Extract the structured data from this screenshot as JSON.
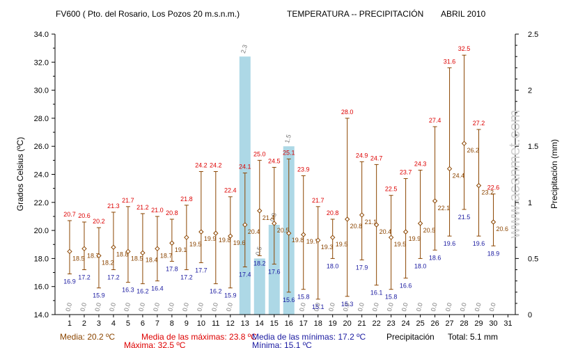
{
  "header": {
    "title": "FV600 ( Pto. del Rosario, Los Pozos 20 m.s.n.m.)",
    "subtitle": "TEMPERATURA -- PRECIPITACIÓN",
    "month": "ABRIL 2010"
  },
  "watermark": "www.acanmet.com",
  "colors": {
    "max": "#dd0000",
    "min": "#1a1aa0",
    "mean": "#8b4500",
    "precip": "#add8e6",
    "axis": "#000000"
  },
  "chart_data": {
    "type": "bar+range",
    "ylabel_left": "Grados Celsius (ºC)",
    "ylabel_right": "Precipitación (mm)",
    "ylim_left": [
      14.0,
      34.0
    ],
    "ylim_right": [
      0,
      2.5
    ],
    "yticks_left": [
      "14.0",
      "16.0",
      "18.0",
      "20.0",
      "22.0",
      "24.0",
      "26.0",
      "28.0",
      "30.0",
      "32.0",
      "34.0"
    ],
    "yticks_right": [
      "0",
      "0.5",
      "1",
      "1.5",
      "2",
      "2.5"
    ],
    "days": [
      1,
      2,
      3,
      4,
      5,
      6,
      7,
      8,
      9,
      10,
      11,
      12,
      13,
      14,
      15,
      16,
      17,
      18,
      19,
      20,
      21,
      22,
      23,
      24,
      25,
      26,
      27,
      28,
      29,
      30,
      31
    ],
    "max": [
      20.7,
      20.6,
      20.2,
      21.3,
      21.7,
      21.2,
      21.0,
      20.8,
      21.8,
      24.2,
      24.2,
      22.4,
      24.1,
      25.0,
      24.5,
      25.1,
      23.9,
      21.7,
      20.8,
      28.0,
      24.9,
      24.7,
      22.5,
      23.7,
      24.3,
      27.4,
      31.6,
      32.5,
      27.2,
      22.6,
      null
    ],
    "mean": [
      18.5,
      18.7,
      18.2,
      18.8,
      18.5,
      18.4,
      18.7,
      19.1,
      19.5,
      19.9,
      19.8,
      19.6,
      20.4,
      21.4,
      20.5,
      19.8,
      19.7,
      19.3,
      19.5,
      20.8,
      21.1,
      20.4,
      19.5,
      19.9,
      20.5,
      22.1,
      24.4,
      26.2,
      23.2,
      20.6,
      null
    ],
    "min": [
      16.9,
      17.2,
      15.9,
      17.2,
      16.3,
      16.2,
      16.4,
      17.8,
      17.2,
      17.7,
      16.2,
      15.9,
      17.4,
      18.2,
      17.6,
      15.6,
      15.8,
      15.1,
      18.0,
      15.3,
      17.9,
      16.1,
      15.8,
      16.6,
      18.0,
      18.6,
      19.6,
      21.5,
      19.6,
      18.9,
      null
    ],
    "precip": [
      0.0,
      0.0,
      0.0,
      0.0,
      0.0,
      0.0,
      0.0,
      0.0,
      0.0,
      0.0,
      0.0,
      0.0,
      2.3,
      0.5,
      0.8,
      1.5,
      0.0,
      0.0,
      0.0,
      0.0,
      0.0,
      0.0,
      0.0,
      0.0,
      0.0,
      0.0,
      0.0,
      0.0,
      0.0,
      0.0,
      null
    ],
    "precip_labels": [
      "0.0",
      "0.0",
      "0.0",
      "0.0",
      "0.0",
      "0.0",
      "0.0",
      "0.0",
      "0.0",
      "0.0",
      "0.0",
      "0.0",
      "2.3",
      "0.5",
      "0.8",
      "1.5",
      "0.0",
      "0.0",
      "0.0",
      "0.0",
      "0.0",
      "0.0",
      "0.0",
      "0.0",
      "0.0",
      "0.0",
      "0.0",
      "0.0",
      "0.0",
      "0.0",
      ""
    ],
    "grid": false
  },
  "footer": {
    "media": "Media: 20.2 ºC",
    "media_max": "Media de las máximas: 23.8 ºC",
    "maxima": "Máxima: 32.5 ºC",
    "media_min": "Media de las mínimas: 17.2 ºC",
    "minima": "Mínima: 15.1 ºC",
    "precip_label": "Precipitación",
    "total": "Total:   5.1 mm"
  }
}
